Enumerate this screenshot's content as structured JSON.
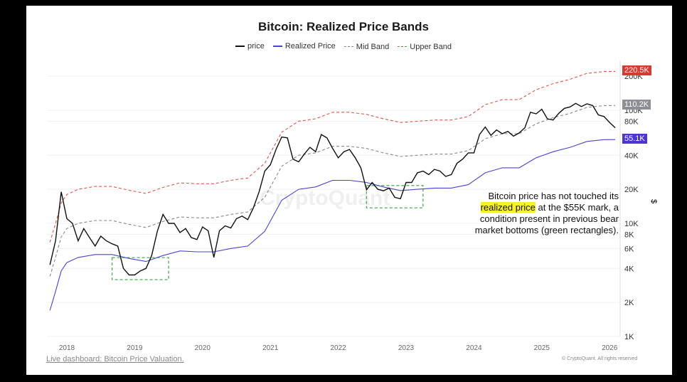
{
  "chart_data": {
    "type": "line",
    "title": "Bitcoin: Realized Price Bands",
    "yscale": "log",
    "ylabel": "$",
    "ylim": [
      1000,
      260000
    ],
    "xlim": [
      "2017-10",
      "2026-02"
    ],
    "grid": true,
    "legend_placement": "top",
    "y_ticks": [
      "1K",
      "2K",
      "4K",
      "6K",
      "8K",
      "10K",
      "20K",
      "40K",
      "80K",
      "100K",
      "200K"
    ],
    "y_tick_values": [
      1000,
      2000,
      4000,
      6000,
      8000,
      10000,
      20000,
      40000,
      80000,
      100000,
      200000
    ],
    "x_ticks": [
      "2018",
      "2019",
      "2020",
      "2021",
      "2022",
      "2023",
      "2024",
      "2025",
      "2026"
    ],
    "series": [
      {
        "name": "price",
        "color": "#111111",
        "style": "solid",
        "x": [
          "2017-10",
          "2017-11",
          "2017-12",
          "2018-01",
          "2018-02",
          "2018-03",
          "2018-04",
          "2018-05",
          "2018-06",
          "2018-07",
          "2018-08",
          "2018-09",
          "2018-10",
          "2018-11",
          "2018-12",
          "2019-01",
          "2019-02",
          "2019-03",
          "2019-04",
          "2019-05",
          "2019-06",
          "2019-07",
          "2019-08",
          "2019-09",
          "2019-10",
          "2019-11",
          "2019-12",
          "2020-01",
          "2020-02",
          "2020-03",
          "2020-04",
          "2020-05",
          "2020-06",
          "2020-07",
          "2020-08",
          "2020-09",
          "2020-10",
          "2020-11",
          "2020-12",
          "2021-01",
          "2021-02",
          "2021-03",
          "2021-04",
          "2021-05",
          "2021-06",
          "2021-07",
          "2021-08",
          "2021-09",
          "2021-10",
          "2021-11",
          "2021-12",
          "2022-01",
          "2022-02",
          "2022-03",
          "2022-04",
          "2022-05",
          "2022-06",
          "2022-07",
          "2022-08",
          "2022-09",
          "2022-10",
          "2022-11",
          "2022-12",
          "2023-01",
          "2023-02",
          "2023-03",
          "2023-04",
          "2023-05",
          "2023-06",
          "2023-07",
          "2023-08",
          "2023-09",
          "2023-10",
          "2023-11",
          "2023-12",
          "2024-01",
          "2024-02",
          "2024-03",
          "2024-04",
          "2024-05",
          "2024-06",
          "2024-07",
          "2024-08",
          "2024-09",
          "2024-10",
          "2024-11",
          "2024-12",
          "2025-01",
          "2025-02",
          "2025-03",
          "2025-04",
          "2025-05",
          "2025-06",
          "2025-07",
          "2025-08",
          "2025-09",
          "2025-10",
          "2025-11",
          "2025-12",
          "2026-01",
          "2026-02"
        ],
        "values": [
          4300,
          7000,
          19000,
          11000,
          10000,
          7000,
          9000,
          7500,
          6300,
          7700,
          7000,
          6600,
          6300,
          4000,
          3500,
          3500,
          3800,
          4000,
          5200,
          8500,
          12000,
          10000,
          10000,
          8300,
          9000,
          7500,
          7200,
          9300,
          8600,
          5000,
          8600,
          9500,
          9100,
          11000,
          11600,
          10800,
          13800,
          19000,
          29000,
          33000,
          45000,
          58000,
          57000,
          37000,
          35000,
          41000,
          47000,
          43000,
          61000,
          57000,
          46000,
          38000,
          43000,
          45000,
          38000,
          31000,
          19800,
          23000,
          20000,
          19400,
          20500,
          17000,
          16500,
          23000,
          23000,
          28000,
          29000,
          27000,
          30000,
          29000,
          26000,
          27000,
          34000,
          37000,
          42000,
          42000,
          61000,
          71000,
          60000,
          67000,
          62000,
          65000,
          59000,
          63000,
          70000,
          96000,
          93000,
          102000,
          84000,
          82000,
          94000,
          104000,
          107000,
          115000,
          108000,
          114000,
          110000,
          91000,
          88000,
          78000,
          70000
        ]
      },
      {
        "name": "Realized Price",
        "color": "#4b43d6",
        "style": "solid",
        "x": [
          "2017-10",
          "2017-11",
          "2017-12",
          "2018-01",
          "2018-03",
          "2018-06",
          "2018-09",
          "2018-12",
          "2019-03",
          "2019-06",
          "2019-09",
          "2019-12",
          "2020-03",
          "2020-06",
          "2020-09",
          "2020-12",
          "2021-03",
          "2021-06",
          "2021-09",
          "2021-12",
          "2022-03",
          "2022-06",
          "2022-09",
          "2022-12",
          "2023-03",
          "2023-06",
          "2023-09",
          "2023-12",
          "2024-03",
          "2024-06",
          "2024-09",
          "2024-12",
          "2025-03",
          "2025-06",
          "2025-09",
          "2025-12",
          "2026-02"
        ],
        "values": [
          1700,
          2500,
          3800,
          4500,
          5000,
          5300,
          5300,
          4900,
          4600,
          5200,
          5700,
          5600,
          5600,
          6000,
          6300,
          8500,
          16000,
          20000,
          21000,
          24000,
          24000,
          23000,
          21000,
          19500,
          20000,
          20500,
          20500,
          22000,
          28000,
          31000,
          31000,
          38000,
          43000,
          47000,
          53000,
          55000,
          55100
        ]
      },
      {
        "name": "Mid Band",
        "color": "#888888",
        "style": "dashed",
        "x": [
          "2017-10",
          "2017-11",
          "2017-12",
          "2018-01",
          "2018-03",
          "2018-06",
          "2018-09",
          "2018-12",
          "2019-03",
          "2019-06",
          "2019-09",
          "2019-12",
          "2020-03",
          "2020-06",
          "2020-09",
          "2020-12",
          "2021-03",
          "2021-06",
          "2021-09",
          "2021-12",
          "2022-03",
          "2022-06",
          "2022-09",
          "2022-12",
          "2023-03",
          "2023-06",
          "2023-09",
          "2023-12",
          "2024-03",
          "2024-06",
          "2024-09",
          "2024-12",
          "2025-03",
          "2025-06",
          "2025-09",
          "2025-12",
          "2026-02"
        ],
        "values": [
          3400,
          5000,
          7600,
          9000,
          10000,
          10600,
          10600,
          9800,
          9200,
          10400,
          11400,
          11200,
          11200,
          12000,
          12600,
          17000,
          32000,
          40000,
          42000,
          48000,
          48000,
          46000,
          42000,
          39000,
          40000,
          41000,
          41000,
          44000,
          56000,
          62000,
          62000,
          76000,
          86000,
          94000,
          106000,
          110000,
          110200
        ]
      },
      {
        "name": "Upper Band",
        "color": "#e0554b",
        "style": "dashed",
        "x": [
          "2017-10",
          "2017-11",
          "2017-12",
          "2018-01",
          "2018-03",
          "2018-06",
          "2018-09",
          "2018-12",
          "2019-03",
          "2019-06",
          "2019-09",
          "2019-12",
          "2020-03",
          "2020-06",
          "2020-09",
          "2020-12",
          "2021-03",
          "2021-06",
          "2021-09",
          "2021-12",
          "2022-03",
          "2022-06",
          "2022-09",
          "2022-12",
          "2023-03",
          "2023-06",
          "2023-09",
          "2023-12",
          "2024-03",
          "2024-06",
          "2024-09",
          "2024-12",
          "2025-03",
          "2025-06",
          "2025-09",
          "2025-12",
          "2026-02"
        ],
        "values": [
          6800,
          10000,
          15200,
          18000,
          20000,
          21200,
          21200,
          19600,
          18400,
          20800,
          22800,
          22400,
          22400,
          24000,
          25200,
          34000,
          64000,
          80000,
          84000,
          96000,
          96000,
          92000,
          84000,
          78000,
          80000,
          82000,
          82000,
          88000,
          112000,
          124000,
          124000,
          152000,
          172000,
          188000,
          212000,
          220000,
          220500
        ]
      }
    ],
    "last_value_labels": [
      {
        "series": "Upper Band",
        "text": "220.5K",
        "value": 220500,
        "color": "#d93a2f"
      },
      {
        "series": "Mid Band",
        "text": "110.2K",
        "value": 110200,
        "color": "#8e8e96"
      },
      {
        "series": "Realized Price",
        "text": "55.1K",
        "value": 55100,
        "color": "#4b35d9"
      }
    ],
    "highlight_rectangles": [
      {
        "x": [
          "2018-09",
          "2019-07"
        ],
        "y": [
          3180,
          4980
        ],
        "color": "#4caf50",
        "style": "dashed"
      },
      {
        "x": [
          "2022-06",
          "2023-04"
        ],
        "y": [
          13700,
          21600
        ],
        "color": "#4caf50",
        "style": "dashed"
      }
    ],
    "annotation": {
      "before": "Bitcoin price has not touched its",
      "highlight": "realized price",
      "after": "at the $55K mark, a condition present in previous bear market bottoms (green rectangles)."
    },
    "watermark": "CryptoQuant"
  },
  "footer": {
    "link": "Live dashboard: Bitcoin Price Valuation.",
    "copyright": "© CryptoQuant. All rights reserved"
  }
}
